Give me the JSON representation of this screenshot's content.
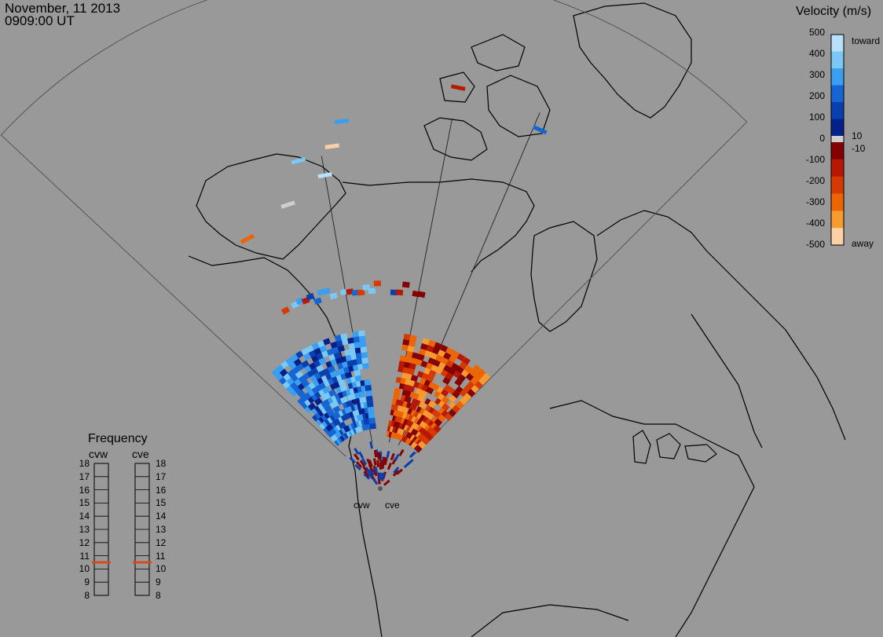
{
  "header": {
    "date": "November, 11 2013",
    "time": "0909:00 UT"
  },
  "velocity_scale": {
    "title": "Velocity (m/s)",
    "ticks": [
      "500",
      "400",
      "300",
      "200",
      "100",
      "0",
      "-100",
      "-200",
      "-300",
      "-400",
      "-500"
    ],
    "label_10": "10",
    "label_neg10": "-10",
    "toward_label": "toward",
    "away_label": "away",
    "colors_toward": [
      "#b8e0fb",
      "#7cc8f5",
      "#3a9ff0",
      "#1565d4",
      "#0a3fb0",
      "#04208a"
    ],
    "colors_away": [
      "#850000",
      "#b81800",
      "#d63a00",
      "#ec6500",
      "#f79a30",
      "#fcd2a4"
    ],
    "color_zero": "#cfcfcf"
  },
  "frequency_panel": {
    "title": "Frequency",
    "radars": [
      "cvw",
      "cve"
    ],
    "ticks": [
      "18",
      "17",
      "16",
      "15",
      "14",
      "13",
      "12",
      "11",
      "10",
      "9",
      "8"
    ],
    "cvw_freq": 10.5,
    "cve_freq": 10.5,
    "marker_color": "#d64a1f"
  },
  "stations": {
    "west": "cvw",
    "east": "cve"
  }
}
